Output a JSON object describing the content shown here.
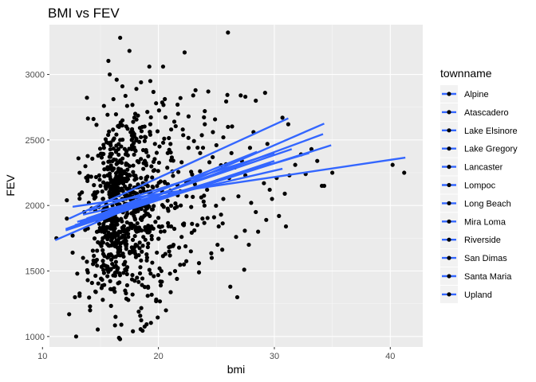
{
  "chart_data": {
    "type": "scatter",
    "title": "BMI vs FEV",
    "xlabel": "bmi",
    "ylabel": "FEV",
    "xlim": [
      10.6,
      42.8
    ],
    "ylim": [
      920,
      3380
    ],
    "xticks": [
      10,
      20,
      30,
      40
    ],
    "yticks": [
      1000,
      1500,
      2000,
      2500,
      3000
    ],
    "grid": true,
    "legend": {
      "title": "townname",
      "position": "right"
    },
    "colors": {
      "panel": "#ebebeb",
      "grid_major": "#ffffff",
      "grid_minor": "#f5f5f5",
      "point": "#000000",
      "line": "#3366ff"
    },
    "lines": [
      {
        "name": "Alpine",
        "x": [
          12.3,
          31.2
        ],
        "y": [
          1900,
          2665
        ]
      },
      {
        "name": "Atascadero",
        "x": [
          11.1,
          34.3
        ],
        "y": [
          1735,
          2625
        ]
      },
      {
        "name": "Lake Elsinore",
        "x": [
          12.0,
          34.2
        ],
        "y": [
          1820,
          2545
        ]
      },
      {
        "name": "Lake Gregory",
        "x": [
          12.5,
          34.9
        ],
        "y": [
          1830,
          2460
        ]
      },
      {
        "name": "Lancaster",
        "x": [
          13.0,
          33.0
        ],
        "y": [
          1875,
          2400
        ]
      },
      {
        "name": "Lompoc",
        "x": [
          14.0,
          30.0
        ],
        "y": [
          1960,
          2400
        ]
      },
      {
        "name": "Long Beach",
        "x": [
          12.8,
          29.7
        ],
        "y": [
          1850,
          2320
        ]
      },
      {
        "name": "Mira Loma",
        "x": [
          13.5,
          30.7
        ],
        "y": [
          1930,
          2280
        ]
      },
      {
        "name": "Riverside",
        "x": [
          12.6,
          41.3
        ],
        "y": [
          1990,
          2365
        ]
      },
      {
        "name": "San Dimas",
        "x": [
          13.2,
          28.5
        ],
        "y": [
          1870,
          2410
        ]
      },
      {
        "name": "Santa Maria",
        "x": [
          12.0,
          30.0
        ],
        "y": [
          1810,
          2340
        ]
      },
      {
        "name": "Upland",
        "x": [
          13.8,
          31.5
        ],
        "y": [
          1900,
          2430
        ]
      }
    ],
    "points": [
      [
        11.2,
        1750
      ],
      [
        12.1,
        1900
      ],
      [
        12.3,
        1170
      ],
      [
        12.9,
        1000
      ],
      [
        12.6,
        1640
      ],
      [
        13.0,
        1480
      ],
      [
        13.2,
        1310
      ],
      [
        12.8,
        1300
      ],
      [
        13.5,
        1600
      ],
      [
        13.1,
        2360
      ],
      [
        14.1,
        1230
      ],
      [
        14.4,
        1580
      ],
      [
        15.1,
        1370
      ],
      [
        15.6,
        1460
      ],
      [
        16.3,
        1150
      ],
      [
        16.6,
        990
      ],
      [
        16.8,
        1090
      ],
      [
        17.8,
        1040
      ],
      [
        18.3,
        1190
      ],
      [
        19.8,
        1270
      ],
      [
        20.2,
        1390
      ],
      [
        21.6,
        1440
      ],
      [
        20.6,
        1630
      ],
      [
        21.3,
        1700
      ],
      [
        22.8,
        1650
      ],
      [
        23.5,
        1560
      ],
      [
        25.4,
        1930
      ],
      [
        26.2,
        1380
      ],
      [
        26.8,
        1300
      ],
      [
        27.4,
        1510
      ],
      [
        28.4,
        1950
      ],
      [
        29.3,
        1890
      ],
      [
        29.8,
        2050
      ],
      [
        30.4,
        1920
      ],
      [
        31.0,
        1840
      ],
      [
        30.9,
        2090
      ],
      [
        31.3,
        2230
      ],
      [
        32.3,
        2390
      ],
      [
        33.2,
        2430
      ],
      [
        34.1,
        2150
      ],
      [
        34.3,
        2150
      ],
      [
        35.0,
        2250
      ],
      [
        40.2,
        2310
      ],
      [
        41.2,
        2250
      ],
      [
        27.1,
        2840
      ],
      [
        27.5,
        2830
      ],
      [
        28.4,
        2800
      ],
      [
        29.2,
        2860
      ],
      [
        30.7,
        2670
      ],
      [
        26.0,
        3320
      ],
      [
        16.7,
        3280
      ],
      [
        17.5,
        3180
      ],
      [
        20.4,
        3060
      ],
      [
        15.8,
        3000
      ],
      [
        16.4,
        2960
      ],
      [
        18.1,
        2890
      ],
      [
        18.5,
        2940
      ],
      [
        19.3,
        2950
      ],
      [
        15.3,
        2760
      ],
      [
        17.3,
        2760
      ],
      [
        21.7,
        2700
      ],
      [
        23.0,
        2840
      ],
      [
        23.2,
        2880
      ],
      [
        24.3,
        2870
      ],
      [
        24.0,
        2720
      ],
      [
        14.4,
        2660
      ],
      [
        16.6,
        2600
      ],
      [
        19.3,
        2620
      ],
      [
        21.1,
        2580
      ],
      [
        22.1,
        2580
      ],
      [
        20.5,
        2510
      ],
      [
        25.6,
        2520
      ],
      [
        28.2,
        2560
      ],
      [
        29.4,
        2470
      ],
      [
        31.2,
        2620
      ],
      [
        12.1,
        2040
      ],
      [
        12.6,
        1770
      ],
      [
        17.7,
        2430
      ],
      [
        18.3,
        2330
      ],
      [
        22.6,
        2440
      ],
      [
        23.6,
        2400
      ],
      [
        24.4,
        2330
      ],
      [
        26.6,
        2290
      ],
      [
        27.2,
        2340
      ],
      [
        29.1,
        2170
      ],
      [
        26.1,
        2210
      ],
      [
        21.2,
        2260
      ],
      [
        22.4,
        2180
      ],
      [
        24.2,
        2120
      ],
      [
        26.9,
        2070
      ],
      [
        28.0,
        2020
      ],
      [
        23.9,
        2030
      ],
      [
        25.6,
        2050
      ],
      [
        27.5,
        2230
      ],
      [
        24.8,
        1910
      ],
      [
        23.1,
        1810
      ],
      [
        21.6,
        1990
      ],
      [
        20.1,
        1520
      ],
      [
        19.6,
        1460
      ],
      [
        18.5,
        1580
      ],
      [
        17.2,
        1330
      ],
      [
        16.0,
        1360
      ],
      [
        15.2,
        1280
      ],
      [
        14.6,
        1340
      ],
      [
        13.9,
        1430
      ],
      [
        19.1,
        1380
      ],
      [
        21.0,
        1480
      ],
      [
        22.2,
        1550
      ],
      [
        23.5,
        1490
      ],
      [
        24.6,
        1600
      ],
      [
        25.1,
        1700
      ],
      [
        26.7,
        1760
      ],
      [
        27.8,
        1700
      ],
      [
        28.6,
        1800
      ],
      [
        29.6,
        2120
      ],
      [
        30.2,
        2210
      ],
      [
        31.8,
        2310
      ],
      [
        32.7,
        2240
      ],
      [
        33.7,
        2340
      ],
      [
        24.7,
        2560
      ],
      [
        25.0,
        2460
      ],
      [
        26.3,
        2400
      ],
      [
        27.9,
        2440
      ],
      [
        22.0,
        2330
      ],
      [
        20.8,
        2400
      ],
      [
        19.7,
        2470
      ],
      [
        18.9,
        2520
      ],
      [
        17.6,
        2560
      ],
      [
        16.1,
        2500
      ],
      [
        15.3,
        2440
      ],
      [
        14.8,
        2380
      ],
      [
        13.7,
        2300
      ],
      [
        14.2,
        2220
      ],
      [
        15.0,
        2150
      ],
      [
        13.4,
        2100
      ],
      [
        14.0,
        2020
      ],
      [
        13.6,
        1950
      ],
      [
        15.5,
        1900
      ],
      [
        16.9,
        2650
      ],
      [
        18.0,
        2700
      ],
      [
        19.8,
        2780
      ],
      [
        21.9,
        2820
      ],
      [
        22.6,
        2680
      ],
      [
        24.0,
        2620
      ],
      [
        26.0,
        2600
      ],
      [
        14.9,
        1860
      ],
      [
        15.7,
        1830
      ],
      [
        16.6,
        1800
      ],
      [
        17.4,
        1760
      ],
      [
        18.1,
        1830
      ],
      [
        18.7,
        1760
      ],
      [
        19.4,
        1840
      ],
      [
        20.2,
        1800
      ],
      [
        21.1,
        1840
      ],
      [
        22.0,
        1760
      ],
      [
        22.9,
        1860
      ],
      [
        23.8,
        1900
      ],
      [
        25.2,
        1840
      ],
      [
        14.5,
        2100
      ],
      [
        15.2,
        2050
      ]
    ],
    "clusters": [
      {
        "cx": 16.6,
        "cy": 2050,
        "sx": 1.6,
        "sy": 270,
        "n": 360
      },
      {
        "cx": 16.8,
        "cy": 1870,
        "sx": 2.0,
        "sy": 330,
        "n": 190
      },
      {
        "cx": 19.6,
        "cy": 2100,
        "sx": 3.0,
        "sy": 370,
        "n": 170
      },
      {
        "cx": 16.0,
        "cy": 1650,
        "sx": 1.5,
        "sy": 200,
        "n": 90
      }
    ]
  }
}
